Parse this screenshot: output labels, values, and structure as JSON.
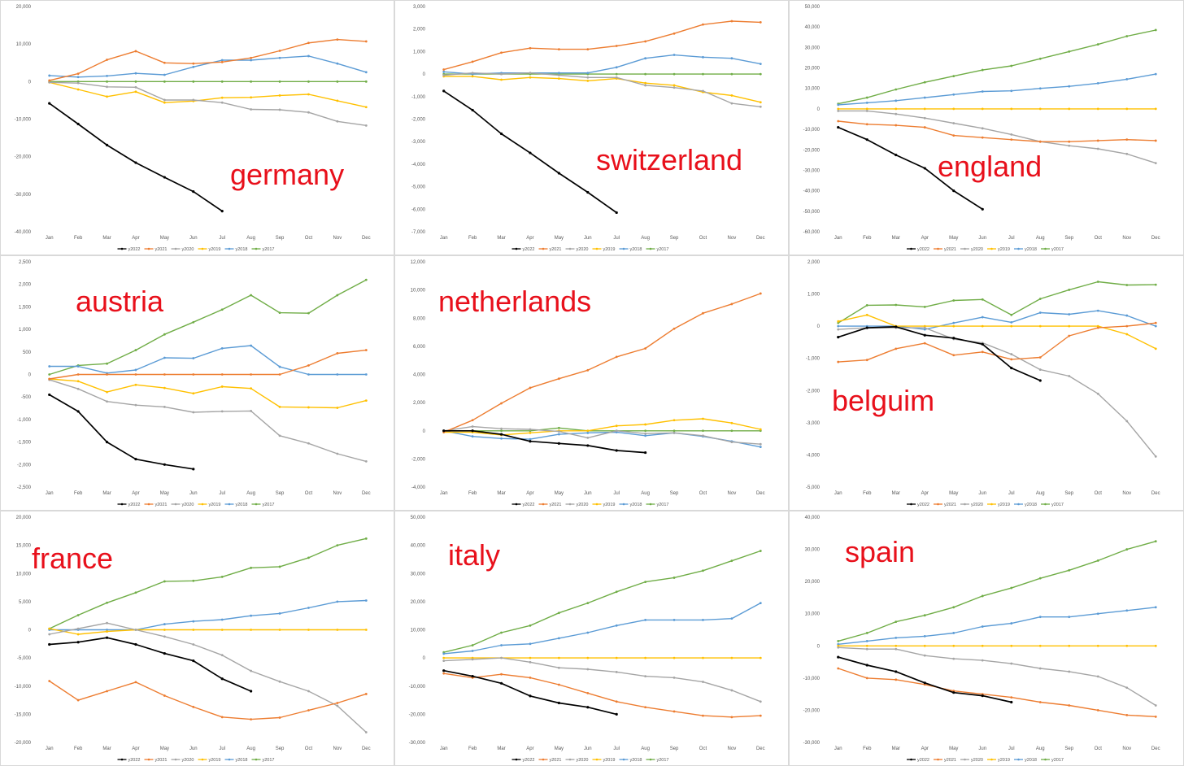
{
  "months": [
    "Jan",
    "Feb",
    "Mar",
    "Apr",
    "May",
    "Jun",
    "Jul",
    "Aug",
    "Sep",
    "Oct",
    "Nov",
    "Dec"
  ],
  "legend": [
    "y2022",
    "y2021",
    "y2020",
    "y2019",
    "y2018",
    "y2017"
  ],
  "series_colors": {
    "y2022": "#000000",
    "y2021": "#ed7d31",
    "y2020": "#a5a5a5",
    "y2019": "#ffc000",
    "y2018": "#5b9bd5",
    "y2017": "#70ad47"
  },
  "label_color": "#e8101b",
  "chart_data": [
    {
      "type": "line",
      "label": "germany",
      "ylim": [
        -40000,
        20000
      ],
      "yticks": [
        -40000,
        -30000,
        -20000,
        -10000,
        0,
        10000,
        20000
      ],
      "series": [
        {
          "name": "y2022",
          "values": [
            -5800,
            -11300,
            -16900,
            -21600,
            -25500,
            -29300,
            -34500
          ]
        },
        {
          "name": "y2021",
          "values": [
            300,
            2100,
            5800,
            8100,
            5000,
            4800,
            5200,
            6300,
            8200,
            10300,
            11200,
            10700
          ]
        },
        {
          "name": "y2020",
          "values": [
            -200,
            -400,
            -1400,
            -1500,
            -4900,
            -4900,
            -5600,
            -7400,
            -7500,
            -8200,
            -10600,
            -11700
          ]
        },
        {
          "name": "y2019",
          "values": [
            -200,
            -2100,
            -4000,
            -2700,
            -5600,
            -5200,
            -4300,
            -4200,
            -3700,
            -3400,
            -5100,
            -6800
          ]
        },
        {
          "name": "y2018",
          "values": [
            1600,
            1200,
            1500,
            2200,
            1800,
            3900,
            5700,
            5700,
            6300,
            6800,
            4800,
            2500
          ]
        },
        {
          "name": "y2017",
          "values": [
            0,
            0,
            0,
            0,
            0,
            0,
            0,
            0,
            0,
            0,
            0,
            0
          ]
        }
      ]
    },
    {
      "type": "line",
      "label": "switzerland",
      "ylim": [
        -7000,
        3000
      ],
      "yticks": [
        -7000,
        -6000,
        -5000,
        -4000,
        -3000,
        -2000,
        -1000,
        0,
        1000,
        2000,
        3000
      ],
      "series": [
        {
          "name": "y2022",
          "values": [
            -750,
            -1600,
            -2650,
            -3500,
            -4400,
            -5250,
            -6150
          ]
        },
        {
          "name": "y2021",
          "values": [
            200,
            550,
            950,
            1150,
            1100,
            1100,
            1250,
            1450,
            1800,
            2200,
            2350,
            2300
          ]
        },
        {
          "name": "y2020",
          "values": [
            -50,
            50,
            0,
            50,
            -50,
            -150,
            -150,
            -500,
            -600,
            -750,
            -1300,
            -1450
          ]
        },
        {
          "name": "y2019",
          "values": [
            -100,
            -100,
            -250,
            -150,
            -200,
            -300,
            -200,
            -400,
            -500,
            -800,
            -950,
            -1250
          ]
        },
        {
          "name": "y2018",
          "values": [
            100,
            0,
            50,
            50,
            50,
            50,
            300,
            700,
            850,
            750,
            700,
            450
          ]
        },
        {
          "name": "y2017",
          "values": [
            0,
            0,
            0,
            0,
            0,
            0,
            0,
            0,
            0,
            0,
            0,
            0
          ]
        }
      ]
    },
    {
      "type": "line",
      "label": "england",
      "ylim": [
        -60000,
        50000
      ],
      "yticks": [
        -60000,
        -50000,
        -40000,
        -30000,
        -20000,
        -10000,
        0,
        10000,
        20000,
        30000,
        40000,
        50000
      ],
      "series": [
        {
          "name": "y2022",
          "values": [
            -9000,
            -15000,
            -22500,
            -29000,
            -40000,
            -49000
          ]
        },
        {
          "name": "y2021",
          "values": [
            -6000,
            -7500,
            -8000,
            -9000,
            -13000,
            -14000,
            -15000,
            -16000,
            -16000,
            -15500,
            -15000,
            -15500
          ]
        },
        {
          "name": "y2020",
          "values": [
            -1000,
            -1000,
            -2500,
            -4500,
            -7000,
            -9500,
            -12500,
            -16000,
            -18000,
            -19500,
            -22000,
            -26500
          ]
        },
        {
          "name": "y2019",
          "values": [
            0,
            0,
            0,
            0,
            0,
            0,
            0,
            0,
            0,
            0,
            0,
            0
          ]
        },
        {
          "name": "y2018",
          "values": [
            2000,
            3000,
            4000,
            5500,
            7000,
            8500,
            8800,
            10000,
            11000,
            12500,
            14500,
            17000
          ]
        },
        {
          "name": "y2017",
          "values": [
            2500,
            5500,
            9500,
            13000,
            16000,
            19000,
            21000,
            24500,
            28000,
            31500,
            35500,
            38500
          ]
        }
      ]
    },
    {
      "type": "line",
      "label": "austria",
      "ylim": [
        -2500,
        2500
      ],
      "yticks": [
        -2500,
        -2000,
        -1500,
        -1000,
        -500,
        0,
        500,
        1000,
        1500,
        2000,
        2500
      ],
      "series": [
        {
          "name": "y2022",
          "values": [
            -450,
            -820,
            -1500,
            -1880,
            -2000,
            -2100
          ]
        },
        {
          "name": "y2021",
          "values": [
            -100,
            0,
            0,
            0,
            0,
            0,
            0,
            0,
            0,
            200,
            470,
            540
          ]
        },
        {
          "name": "y2020",
          "values": [
            -120,
            -320,
            -600,
            -680,
            -720,
            -840,
            -820,
            -810,
            -1360,
            -1530,
            -1760,
            -1930
          ]
        },
        {
          "name": "y2019",
          "values": [
            -100,
            -150,
            -390,
            -230,
            -300,
            -420,
            -270,
            -310,
            -720,
            -730,
            -740,
            -580
          ]
        },
        {
          "name": "y2018",
          "values": [
            180,
            180,
            30,
            100,
            370,
            360,
            580,
            640,
            170,
            0,
            0,
            0
          ]
        },
        {
          "name": "y2017",
          "values": [
            0,
            200,
            240,
            540,
            890,
            1160,
            1440,
            1760,
            1370,
            1360,
            1760,
            2100
          ]
        }
      ]
    },
    {
      "type": "line",
      "label": "netherlands",
      "ylim": [
        -4000,
        12000
      ],
      "yticks": [
        -4000,
        -2000,
        0,
        2000,
        4000,
        6000,
        8000,
        10000,
        12000
      ],
      "series": [
        {
          "name": "y2022",
          "values": [
            0,
            0,
            -250,
            -750,
            -900,
            -1050,
            -1400,
            -1550
          ]
        },
        {
          "name": "y2021",
          "values": [
            -100,
            750,
            1950,
            3050,
            3700,
            4300,
            5250,
            5850,
            7250,
            8350,
            9000,
            9750
          ]
        },
        {
          "name": "y2020",
          "values": [
            0,
            300,
            150,
            100,
            -50,
            -500,
            0,
            -200,
            -150,
            -350,
            -800,
            -950
          ]
        },
        {
          "name": "y2019",
          "values": [
            -100,
            -100,
            -300,
            -150,
            0,
            0,
            350,
            450,
            750,
            850,
            550,
            100
          ]
        },
        {
          "name": "y2018",
          "values": [
            0,
            -400,
            -550,
            -600,
            -250,
            -150,
            -100,
            -350,
            -150,
            -400,
            -750,
            -1150
          ]
        },
        {
          "name": "y2017",
          "values": [
            0,
            0,
            0,
            0,
            200,
            0,
            0,
            0,
            0,
            0,
            0,
            0
          ]
        }
      ]
    },
    {
      "type": "line",
      "label": "belguim",
      "ylim": [
        -5000,
        2000
      ],
      "yticks": [
        -5000,
        -4000,
        -3000,
        -2000,
        -1000,
        0,
        1000,
        2000
      ],
      "series": [
        {
          "name": "y2022",
          "values": [
            -340,
            -50,
            -20,
            -280,
            -370,
            -560,
            -1300,
            -1690
          ]
        },
        {
          "name": "y2021",
          "values": [
            -1110,
            -1050,
            -700,
            -530,
            -900,
            -800,
            -1030,
            -970,
            -300,
            -50,
            0,
            100
          ]
        },
        {
          "name": "y2020",
          "values": [
            -100,
            -50,
            -50,
            -50,
            -400,
            -520,
            -870,
            -1350,
            -1550,
            -2100,
            -2950,
            -4050
          ]
        },
        {
          "name": "y2019",
          "values": [
            150,
            350,
            0,
            0,
            0,
            0,
            0,
            0,
            0,
            0,
            -250,
            -700
          ]
        },
        {
          "name": "y2018",
          "values": [
            0,
            0,
            0,
            -100,
            100,
            280,
            120,
            420,
            370,
            480,
            330,
            0
          ]
        },
        {
          "name": "y2017",
          "values": [
            100,
            650,
            660,
            600,
            800,
            830,
            350,
            850,
            1130,
            1380,
            1280,
            1290
          ]
        }
      ]
    },
    {
      "type": "line",
      "label": "france",
      "ylim": [
        -20000,
        20000
      ],
      "yticks": [
        -20000,
        -15000,
        -10000,
        -5000,
        0,
        5000,
        10000,
        15000,
        20000
      ],
      "series": [
        {
          "name": "y2022",
          "values": [
            -2600,
            -2200,
            -1400,
            -2600,
            -4200,
            -5500,
            -8700,
            -10900
          ]
        },
        {
          "name": "y2021",
          "values": [
            -9100,
            -12500,
            -10900,
            -9300,
            -11700,
            -13700,
            -15500,
            -15900,
            -15600,
            -14300,
            -13000,
            -11400
          ]
        },
        {
          "name": "y2020",
          "values": [
            -800,
            200,
            1200,
            0,
            -1200,
            -2600,
            -4500,
            -7300,
            -9200,
            -10900,
            -13500,
            -18200
          ]
        },
        {
          "name": "y2019",
          "values": [
            200,
            -800,
            -300,
            0,
            0,
            0,
            0,
            0,
            0,
            0,
            0,
            0
          ]
        },
        {
          "name": "y2018",
          "values": [
            0,
            0,
            0,
            0,
            1000,
            1500,
            1800,
            2500,
            2900,
            3900,
            5000,
            5200
          ]
        },
        {
          "name": "y2017",
          "values": [
            200,
            2600,
            4800,
            6600,
            8600,
            8700,
            9400,
            11000,
            11200,
            12800,
            15000,
            16200
          ]
        }
      ]
    },
    {
      "type": "line",
      "label": "italy",
      "ylim": [
        -30000,
        50000
      ],
      "yticks": [
        -30000,
        -20000,
        -10000,
        0,
        10000,
        20000,
        30000,
        40000,
        50000
      ],
      "series": [
        {
          "name": "y2022",
          "values": [
            -4500,
            -6500,
            -9000,
            -13500,
            -16000,
            -17500,
            -20000
          ]
        },
        {
          "name": "y2021",
          "values": [
            -5500,
            -7000,
            -5800,
            -7000,
            -9500,
            -12500,
            -15500,
            -17500,
            -19000,
            -20500,
            -21000,
            -20500
          ]
        },
        {
          "name": "y2020",
          "values": [
            -1000,
            -500,
            0,
            -1500,
            -3500,
            -4000,
            -5000,
            -6500,
            -7000,
            -8500,
            -11500,
            -15500
          ]
        },
        {
          "name": "y2019",
          "values": [
            0,
            0,
            0,
            0,
            0,
            0,
            0,
            0,
            0,
            0,
            0,
            0
          ]
        },
        {
          "name": "y2018",
          "values": [
            1500,
            2500,
            4500,
            5000,
            7000,
            9000,
            11500,
            13500,
            13500,
            13500,
            14000,
            19500
          ]
        },
        {
          "name": "y2017",
          "values": [
            2000,
            4500,
            9000,
            11500,
            16000,
            19500,
            23500,
            27000,
            28500,
            31000,
            34500,
            38000
          ]
        }
      ]
    },
    {
      "type": "line",
      "label": "spain",
      "ylim": [
        -30000,
        40000
      ],
      "yticks": [
        -30000,
        -20000,
        -10000,
        0,
        10000,
        20000,
        30000,
        40000
      ],
      "series": [
        {
          "name": "y2022",
          "values": [
            -3500,
            -6000,
            -8000,
            -11500,
            -14500,
            -15500,
            -17500
          ]
        },
        {
          "name": "y2021",
          "values": [
            -7000,
            -10000,
            -10500,
            -12000,
            -14000,
            -15000,
            -16000,
            -17500,
            -18500,
            -20000,
            -21500,
            -22000
          ]
        },
        {
          "name": "y2020",
          "values": [
            -500,
            -1000,
            -1000,
            -3000,
            -4000,
            -4500,
            -5500,
            -7000,
            -8000,
            -9500,
            -13000,
            -18500
          ]
        },
        {
          "name": "y2019",
          "values": [
            0,
            0,
            0,
            0,
            0,
            0,
            0,
            0,
            0,
            0,
            0,
            0
          ]
        },
        {
          "name": "y2018",
          "values": [
            500,
            1500,
            2500,
            3000,
            4000,
            6000,
            7000,
            9000,
            9000,
            10000,
            11000,
            12000
          ]
        },
        {
          "name": "y2017",
          "values": [
            1500,
            4000,
            7500,
            9500,
            12000,
            15500,
            18000,
            21000,
            23500,
            26500,
            30000,
            32500
          ]
        }
      ]
    }
  ]
}
